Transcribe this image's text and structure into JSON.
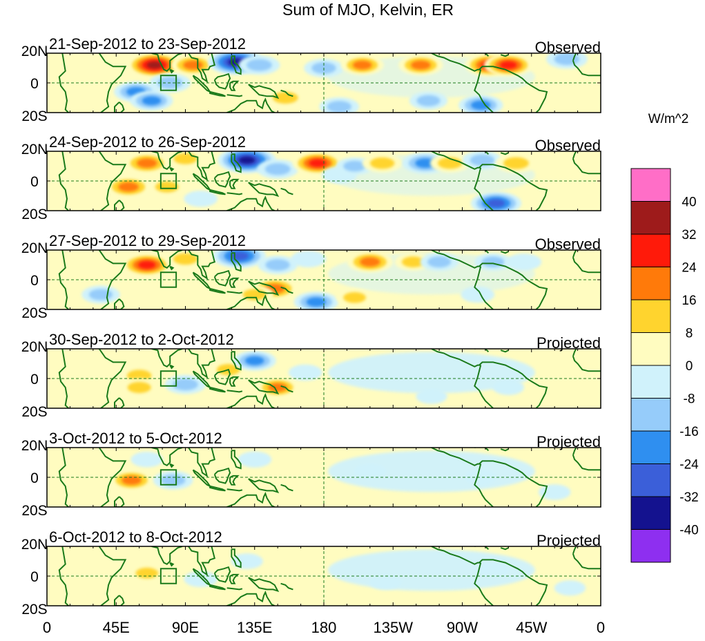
{
  "chart_data": {
    "type": "heatmap",
    "title": "Sum of MJO, Kelvin, ER",
    "units": "W/m^2",
    "x_tick_labels": [
      "0",
      "45E",
      "90E",
      "135E",
      "180",
      "135W",
      "90W",
      "45W",
      "0"
    ],
    "y_tick_labels": [
      "20N",
      "0",
      "20S"
    ],
    "xlim": [
      0,
      360
    ],
    "ylim": [
      -20,
      20
    ],
    "colorbar": {
      "labels": [
        "40",
        "32",
        "24",
        "16",
        "8",
        "0",
        "-8",
        "-16",
        "-24",
        "-32",
        "-40"
      ],
      "colors": [
        "#ff6ec7",
        "#9e1b1b",
        "#ff1a0a",
        "#ff7a0a",
        "#ffd42e",
        "#fffcc0",
        "#d0f2fb",
        "#96ccfa",
        "#2f8ff0",
        "#3b5fd9",
        "#14128f",
        "#8e2ff0"
      ]
    },
    "panels": [
      {
        "date_label": "21-Sep-2012 to 23-Sep-2012",
        "kind": "Observed",
        "anomalies": [
          {
            "lon": 70,
            "lat": 12,
            "value": 36
          },
          {
            "lon": 95,
            "lat": 12,
            "value": 22
          },
          {
            "lon": 123,
            "lat": 14,
            "value": -38
          },
          {
            "lon": 138,
            "lat": 12,
            "value": -18
          },
          {
            "lon": 180,
            "lat": 10,
            "value": -16
          },
          {
            "lon": 205,
            "lat": 12,
            "value": 20
          },
          {
            "lon": 243,
            "lat": 12,
            "value": 22
          },
          {
            "lon": 288,
            "lat": 12,
            "value": 30
          },
          {
            "lon": 300,
            "lat": 12,
            "value": 28
          },
          {
            "lon": 80,
            "lat": 0,
            "value": -18
          },
          {
            "lon": 58,
            "lat": -6,
            "value": -22
          },
          {
            "lon": 68,
            "lat": -12,
            "value": -20
          },
          {
            "lon": 155,
            "lat": -10,
            "value": 18
          },
          {
            "lon": 190,
            "lat": -16,
            "value": -16
          },
          {
            "lon": 248,
            "lat": -12,
            "value": -14
          },
          {
            "lon": 282,
            "lat": -15,
            "value": -22
          },
          {
            "lon": 338,
            "lat": 16,
            "value": -18
          },
          {
            "lon": 28,
            "lat": 12,
            "value": 6
          }
        ]
      },
      {
        "date_label": "24-Sep-2012 to 26-Sep-2012",
        "kind": "Observed",
        "anomalies": [
          {
            "lon": 65,
            "lat": 12,
            "value": 24
          },
          {
            "lon": 90,
            "lat": 15,
            "value": 14
          },
          {
            "lon": 130,
            "lat": 14,
            "value": -40
          },
          {
            "lon": 150,
            "lat": 8,
            "value": -18
          },
          {
            "lon": 176,
            "lat": 12,
            "value": 30
          },
          {
            "lon": 190,
            "lat": 4,
            "value": -10
          },
          {
            "lon": 200,
            "lat": 10,
            "value": -12
          },
          {
            "lon": 218,
            "lat": 12,
            "value": 16
          },
          {
            "lon": 246,
            "lat": 12,
            "value": -24
          },
          {
            "lon": 262,
            "lat": 12,
            "value": 16
          },
          {
            "lon": 283,
            "lat": 14,
            "value": -16
          },
          {
            "lon": 305,
            "lat": 12,
            "value": 18
          },
          {
            "lon": 53,
            "lat": -4,
            "value": 24
          },
          {
            "lon": 78,
            "lat": -4,
            "value": 14
          },
          {
            "lon": 25,
            "lat": -12,
            "value": 10
          },
          {
            "lon": 100,
            "lat": -12,
            "value": -8
          },
          {
            "lon": 292,
            "lat": -15,
            "value": -30
          },
          {
            "lon": 160,
            "lat": -10,
            "value": 6
          }
        ]
      },
      {
        "date_label": "27-Sep-2012 to 29-Sep-2012",
        "kind": "Observed",
        "anomalies": [
          {
            "lon": 65,
            "lat": 10,
            "value": 30
          },
          {
            "lon": 90,
            "lat": 14,
            "value": 16
          },
          {
            "lon": 125,
            "lat": 16,
            "value": -34
          },
          {
            "lon": 150,
            "lat": 10,
            "value": -16
          },
          {
            "lon": 170,
            "lat": 14,
            "value": -10
          },
          {
            "lon": 210,
            "lat": 12,
            "value": 24
          },
          {
            "lon": 238,
            "lat": 12,
            "value": 12
          },
          {
            "lon": 255,
            "lat": 12,
            "value": -14
          },
          {
            "lon": 290,
            "lat": 12,
            "value": -12
          },
          {
            "lon": 310,
            "lat": 12,
            "value": -10
          },
          {
            "lon": 148,
            "lat": -6,
            "value": 26
          },
          {
            "lon": 135,
            "lat": -10,
            "value": 14
          },
          {
            "lon": 175,
            "lat": -15,
            "value": -22
          },
          {
            "lon": 200,
            "lat": -12,
            "value": 12
          },
          {
            "lon": 35,
            "lat": -10,
            "value": -14
          },
          {
            "lon": 280,
            "lat": -10,
            "value": -8
          },
          {
            "lon": 15,
            "lat": 12,
            "value": 6
          }
        ]
      },
      {
        "date_label": "30-Sep-2012 to 2-Oct-2012",
        "kind": "Projected",
        "anomalies": [
          {
            "lon": 60,
            "lat": 2,
            "value": 16
          },
          {
            "lon": 60,
            "lat": -6,
            "value": 14
          },
          {
            "lon": 78,
            "lat": 14,
            "value": 8
          },
          {
            "lon": 90,
            "lat": -4,
            "value": -18
          },
          {
            "lon": 118,
            "lat": 6,
            "value": 14
          },
          {
            "lon": 135,
            "lat": 12,
            "value": -20
          },
          {
            "lon": 150,
            "lat": -6,
            "value": 20
          },
          {
            "lon": 168,
            "lat": 4,
            "value": -8
          },
          {
            "lon": 40,
            "lat": 12,
            "value": 6
          },
          {
            "lon": 250,
            "lat": -12,
            "value": -5
          },
          {
            "lon": 300,
            "lat": -6,
            "value": -5
          }
        ]
      },
      {
        "date_label": "3-Oct-2012 to 5-Oct-2012",
        "kind": "Projected",
        "anomalies": [
          {
            "lon": 55,
            "lat": -2,
            "value": 22
          },
          {
            "lon": 82,
            "lat": -2,
            "value": -16
          },
          {
            "lon": 65,
            "lat": 12,
            "value": -6
          },
          {
            "lon": 135,
            "lat": 12,
            "value": -8
          },
          {
            "lon": 150,
            "lat": -6,
            "value": 8
          },
          {
            "lon": 175,
            "lat": -4,
            "value": 6
          },
          {
            "lon": 210,
            "lat": 4,
            "value": -6
          },
          {
            "lon": 282,
            "lat": 0,
            "value": -6
          },
          {
            "lon": 330,
            "lat": -10,
            "value": -6
          },
          {
            "lon": 20,
            "lat": 8,
            "value": 6
          }
        ]
      },
      {
        "date_label": "6-Oct-2012 to 8-Oct-2012",
        "kind": "Projected",
        "anomalies": [
          {
            "lon": 65,
            "lat": 2,
            "value": 12
          },
          {
            "lon": 100,
            "lat": -2,
            "value": -8
          },
          {
            "lon": 165,
            "lat": 0,
            "value": 10
          },
          {
            "lon": 130,
            "lat": 10,
            "value": -6
          },
          {
            "lon": 220,
            "lat": -4,
            "value": -6
          },
          {
            "lon": 290,
            "lat": 4,
            "value": -6
          },
          {
            "lon": 30,
            "lat": 4,
            "value": 6
          },
          {
            "lon": 340,
            "lat": -8,
            "value": -5
          }
        ]
      }
    ]
  }
}
